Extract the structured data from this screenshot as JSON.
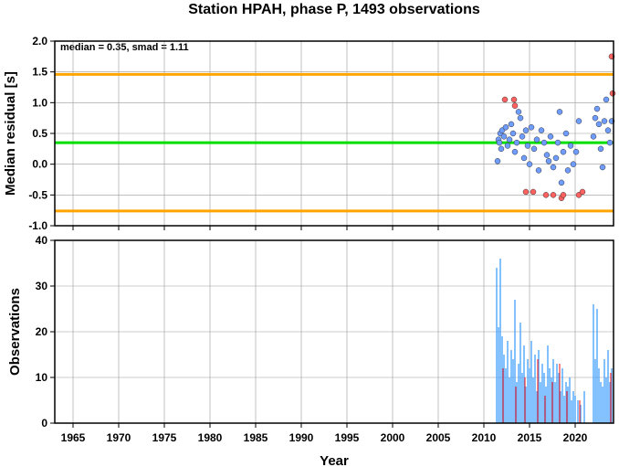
{
  "chart_data": [
    {
      "type": "scatter",
      "title": "Station HPAH, phase P, 1493 observations",
      "annotation": "median = 0.35, smad = 1.11",
      "y_label": "Median residual [s]",
      "xlim": [
        1963,
        2024.2
      ],
      "xticks": [
        1965,
        1970,
        1975,
        1980,
        1985,
        1990,
        1995,
        2000,
        2005,
        2010,
        2015,
        2020
      ],
      "ylim": [
        -1,
        2
      ],
      "yticks": [
        {
          "value": -1,
          "label": "-1.0"
        },
        -0.5,
        {
          "value": 0,
          "label": "0.0"
        },
        0.5,
        {
          "value": 1,
          "label": "1.0"
        },
        1.5,
        {
          "value": 2,
          "label": "2.0"
        }
      ],
      "grid": true,
      "reference_lines": [
        {
          "value": 1.46,
          "color": "#ffa500"
        },
        {
          "value": 0.35,
          "color": "#00e000"
        },
        {
          "value": -0.76,
          "color": "#ffa500"
        }
      ],
      "series": [
        {
          "color": "#6e9cff",
          "x": [
            2011.5,
            2011.6,
            2011.7,
            2011.8,
            2011.9,
            2012.0,
            2012.2,
            2012.4,
            2012.6,
            2012.8,
            2013.0,
            2013.2,
            2013.4,
            2013.6,
            2013.8,
            2014.0,
            2014.2,
            2014.4,
            2014.6,
            2014.8,
            2015.0,
            2015.2,
            2015.5,
            2015.8,
            2016.0,
            2016.3,
            2016.6,
            2016.9,
            2017.1,
            2017.3,
            2017.6,
            2017.9,
            2018.1,
            2018.3,
            2018.5,
            2018.7,
            2019.0,
            2019.2,
            2019.5,
            2019.8,
            2020.1,
            2020.4,
            2022.0,
            2022.2,
            2022.4,
            2022.6,
            2022.8,
            2023.0,
            2023.2,
            2023.4,
            2023.6,
            2023.8,
            2024.0
          ],
          "values": [
            0.05,
            0.4,
            0.35,
            0.5,
            0.25,
            0.55,
            0.45,
            0.6,
            0.3,
            0.4,
            0.65,
            0.5,
            0.2,
            0.35,
            0.85,
            0.75,
            0.45,
            0.1,
            0.55,
            0.3,
            0.0,
            0.6,
            0.25,
            0.4,
            -0.1,
            0.55,
            0.35,
            0.15,
            0.05,
            0.45,
            -0.05,
            0.1,
            0.35,
            0.85,
            -0.3,
            0.2,
            0.5,
            -0.1,
            0.3,
            0.0,
            0.2,
            0.7,
            0.45,
            0.75,
            0.9,
            0.65,
            0.25,
            -0.05,
            0.7,
            1.05,
            0.55,
            0.35,
            0.7
          ]
        },
        {
          "color": "#ff6060",
          "x": [
            2012.3,
            2013.3,
            2013.4,
            2014.6,
            2015.4,
            2016.8,
            2017.6,
            2018.5,
            2018.7,
            2020.4,
            2020.8,
            2024.0,
            2024.1
          ],
          "values": [
            1.05,
            1.05,
            0.95,
            -0.45,
            -0.45,
            -0.5,
            -0.5,
            -0.55,
            -0.5,
            -0.5,
            -0.45,
            1.75,
            1.15
          ]
        }
      ]
    },
    {
      "type": "bar",
      "y_label": "Observations",
      "x_label": "Year",
      "xlim": [
        1963,
        2024.2
      ],
      "xticks": [
        1965,
        1970,
        1975,
        1980,
        1985,
        1990,
        1995,
        2000,
        2005,
        2010,
        2015,
        2020
      ],
      "ylim": [
        0,
        40
      ],
      "yticks": [
        0,
        10,
        20,
        30,
        40
      ],
      "grid": true,
      "series": [
        {
          "color": "#3399ff",
          "x": [
            2011.4,
            2011.6,
            2011.8,
            2012.0,
            2012.2,
            2012.4,
            2012.6,
            2012.8,
            2013.0,
            2013.2,
            2013.4,
            2013.6,
            2013.8,
            2014.0,
            2014.2,
            2014.4,
            2014.6,
            2014.8,
            2015.0,
            2015.2,
            2015.4,
            2015.6,
            2015.8,
            2016.0,
            2016.2,
            2016.4,
            2016.6,
            2016.8,
            2017.0,
            2017.2,
            2017.4,
            2017.6,
            2017.8,
            2018.0,
            2018.2,
            2018.4,
            2018.6,
            2018.8,
            2019.0,
            2019.2,
            2019.4,
            2019.6,
            2019.8,
            2020.0,
            2020.3,
            2020.6,
            2021.0,
            2022.0,
            2022.2,
            2022.4,
            2022.6,
            2022.8,
            2023.0,
            2023.2,
            2023.4,
            2023.6,
            2023.8,
            2024.0
          ],
          "values": [
            34,
            21,
            36,
            19,
            15,
            12,
            18,
            10,
            16,
            14,
            27,
            9,
            13,
            22,
            11,
            17,
            8,
            14,
            12,
            18,
            10,
            15,
            7,
            16,
            9,
            13,
            11,
            8,
            17,
            12,
            10,
            14,
            9,
            13,
            11,
            7,
            12,
            6,
            9,
            8,
            10,
            5,
            7,
            6,
            5,
            4,
            7,
            26,
            14,
            25,
            12,
            9,
            8,
            14,
            10,
            16,
            9,
            12
          ]
        },
        {
          "color": "#ff3333",
          "x": [
            2012.1,
            2013.5,
            2014.5,
            2015.9,
            2016.7,
            2017.5,
            2018.3,
            2019.1,
            2020.5,
            2023.9
          ],
          "values": [
            12,
            8,
            10,
            14,
            6,
            9,
            13,
            7,
            5,
            11
          ]
        }
      ]
    }
  ]
}
